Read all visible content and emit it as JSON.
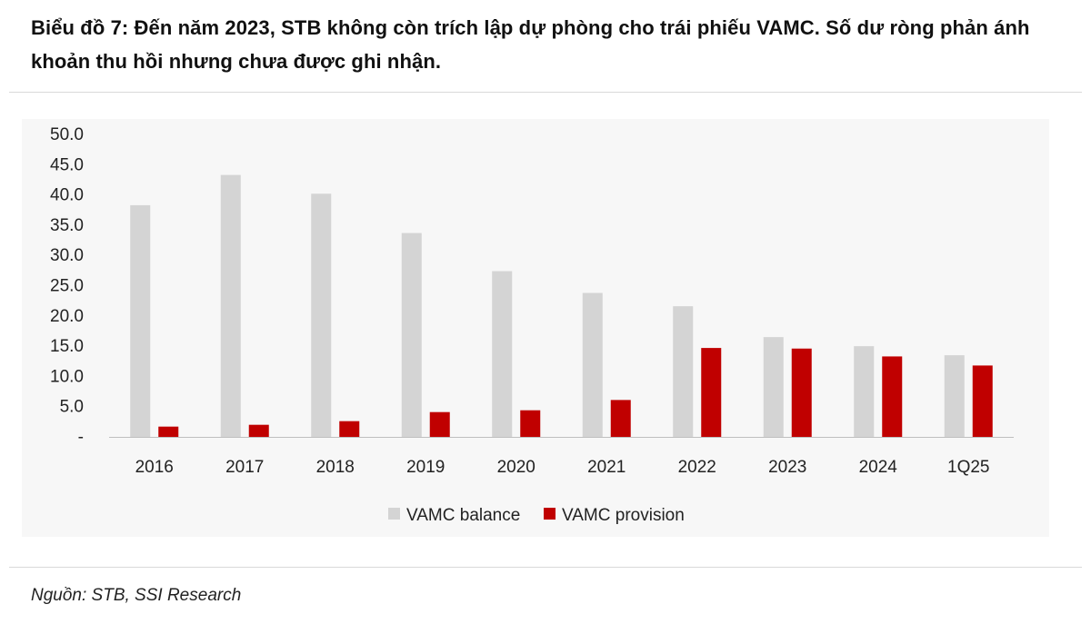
{
  "title": "Biểu đồ 7: Đến năm 2023, STB không còn trích lập dự phòng cho trái phiếu VAMC. Số dư ròng phản ánh khoản thu hồi nhưng chưa được ghi nhận.",
  "source": "Nguồn: STB, SSI Research",
  "colors": {
    "balance": "#d4d4d4",
    "provision": "#c00000",
    "axis": "#bfbfbf",
    "plot_background": "#f7f7f7"
  },
  "chart_data": {
    "type": "bar",
    "categories": [
      "2016",
      "2017",
      "2018",
      "2019",
      "2020",
      "2021",
      "2022",
      "2023",
      "2024",
      "1Q25"
    ],
    "series": [
      {
        "name": "VAMC balance",
        "color": "#d4d4d4",
        "values": [
          38.3,
          43.3,
          40.2,
          33.7,
          27.4,
          23.8,
          21.6,
          16.5,
          15.0,
          13.5
        ]
      },
      {
        "name": "VAMC provision",
        "color": "#c00000",
        "values": [
          1.7,
          2.0,
          2.6,
          4.1,
          4.4,
          6.1,
          14.7,
          14.6,
          13.3,
          11.8
        ]
      }
    ],
    "ylim": [
      0,
      50
    ],
    "yticks": [
      "-",
      "5.0",
      "10.0",
      "15.0",
      "20.0",
      "25.0",
      "30.0",
      "35.0",
      "40.0",
      "45.0",
      "50.0"
    ],
    "grid": false,
    "legend_position": "bottom-center"
  }
}
